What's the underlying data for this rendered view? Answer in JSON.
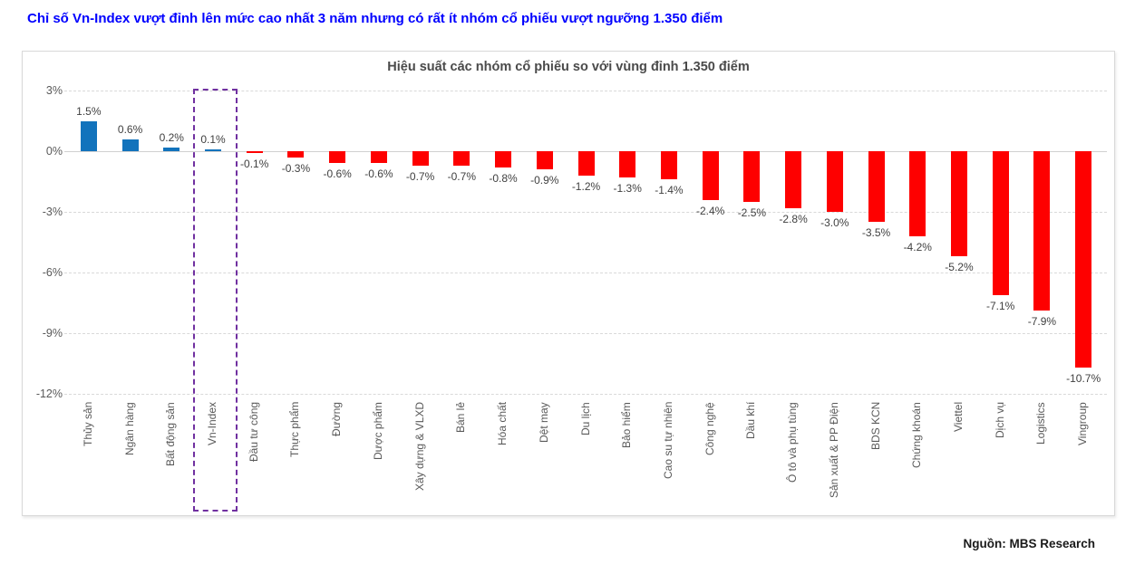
{
  "page": {
    "title": "Chỉ số Vn-Index vượt đỉnh lên mức cao nhất 3 năm nhưng có rất ít nhóm cổ phiếu vượt ngưỡng 1.350 điểm",
    "source": "Nguồn: MBS Research"
  },
  "colors": {
    "title_blue": "#0000FF",
    "positive_bar": "#1273BC",
    "negative_bar": "#FE0000",
    "highlight_box": "#7030A0",
    "gridline": "#D9D9D9",
    "axis_text": "#595959",
    "value_text": "#3F3F3F"
  },
  "chart_data": {
    "type": "bar",
    "title": "Hiệu suất các nhóm cổ phiếu so với vùng đỉnh 1.350 điểm",
    "categories": [
      "Thủy sản",
      "Ngân hàng",
      "Bất động sản",
      "Vn-Index",
      "Đầu tư công",
      "Thực phẩm",
      "Đường",
      "Dược phẩm",
      "Xây dựng & VLXD",
      "Bán lẻ",
      "Hóa chất",
      "Dệt may",
      "Du lịch",
      "Bảo hiểm",
      "Cao su tự nhiên",
      "Công nghệ",
      "Dầu khí",
      "Ô tô và phụ tùng",
      "Sản xuất & PP Điện",
      "BDS KCN",
      "Chứng khoán",
      "Viettel",
      "Dịch vụ",
      "Logistics",
      "Vingroup"
    ],
    "values": [
      1.5,
      0.6,
      0.2,
      0.1,
      -0.1,
      -0.3,
      -0.6,
      -0.6,
      -0.7,
      -0.7,
      -0.8,
      -0.9,
      -1.2,
      -1.3,
      -1.4,
      -2.4,
      -2.5,
      -2.8,
      -3.0,
      -3.5,
      -4.2,
      -5.2,
      -7.1,
      -7.9,
      -10.7
    ],
    "value_labels": [
      "1.5%",
      "0.6%",
      "0.2%",
      "0.1%",
      "-0.1%",
      "-0.3%",
      "-0.6%",
      "-0.6%",
      "-0.7%",
      "-0.7%",
      "-0.8%",
      "-0.9%",
      "-1.2%",
      "-1.3%",
      "-1.4%",
      "-2.4%",
      "-2.5%",
      "-2.8%",
      "-3.0%",
      "-3.5%",
      "-4.2%",
      "-5.2%",
      "-7.1%",
      "-7.9%",
      "-10.7%"
    ],
    "highlighted_category": "Vn-Index",
    "highlight_index": 3,
    "y_ticks": [
      "3%",
      "0%",
      "-3%",
      "-6%",
      "-9%",
      "-12%"
    ],
    "y_tick_values": [
      3,
      0,
      -3,
      -6,
      -9,
      -12
    ],
    "ylim": [
      -12,
      3
    ],
    "xlabel": "",
    "ylabel": "",
    "grid": "horizontal-dashed",
    "legend": "none",
    "bar_color_rule": "positive values blue, negative values red"
  }
}
